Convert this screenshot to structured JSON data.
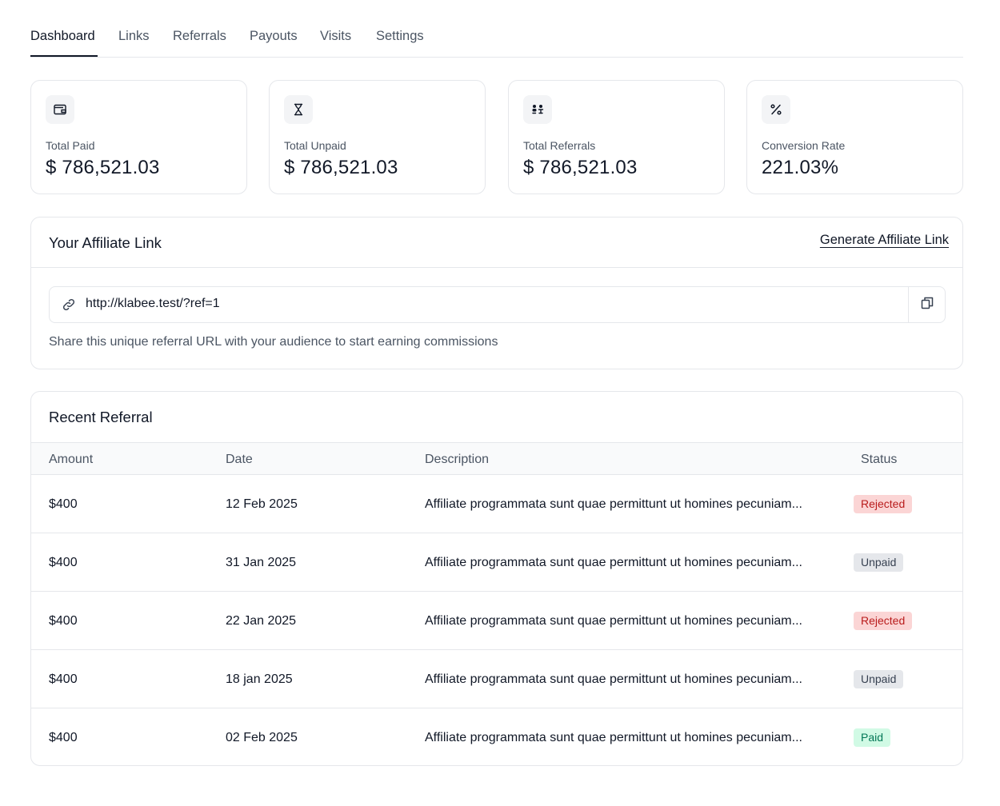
{
  "tabs": [
    {
      "label": "Dashboard",
      "active": true
    },
    {
      "label": "Links",
      "active": false
    },
    {
      "label": "Referrals",
      "active": false
    },
    {
      "label": "Payouts",
      "active": false
    },
    {
      "label": "Visits",
      "active": false
    },
    {
      "label": "Settings",
      "active": false
    }
  ],
  "stats": [
    {
      "icon": "wallet-icon",
      "label": "Total Paid",
      "value": "$ 786,521.03"
    },
    {
      "icon": "hourglass-icon",
      "label": "Total Unpaid",
      "value": "$ 786,521.03"
    },
    {
      "icon": "referrals-icon",
      "label": "Total Referrals",
      "value": "$ 786,521.03"
    },
    {
      "icon": "percent-icon",
      "label": "Conversion Rate",
      "value": "221.03%"
    }
  ],
  "affiliate": {
    "title": "Your Affiliate Link",
    "generate_label": "Generate Affiliate Link",
    "url": "http://klabee.test/?ref=1",
    "help": "Share this unique referral URL with your audience to start earning commissions"
  },
  "referrals": {
    "title": "Recent Referral",
    "columns": {
      "amount": "Amount",
      "date": "Date",
      "description": "Description",
      "status": "Status"
    },
    "rows": [
      {
        "amount": "$400",
        "date": "12 Feb 2025",
        "description": "Affiliate programmata sunt quae permittunt ut homines pecuniam...",
        "status": "Rejected",
        "status_type": "rejected"
      },
      {
        "amount": "$400",
        "date": "31 Jan 2025",
        "description": "Affiliate programmata sunt quae permittunt ut homines pecuniam...",
        "status": "Unpaid",
        "status_type": "unpaid"
      },
      {
        "amount": "$400",
        "date": "22 Jan 2025",
        "description": "Affiliate programmata sunt quae permittunt ut homines pecuniam...",
        "status": "Rejected",
        "status_type": "rejected"
      },
      {
        "amount": "$400",
        "date": "18 jan 2025",
        "description": "Affiliate programmata sunt quae permittunt ut homines pecuniam...",
        "status": "Unpaid",
        "status_type": "unpaid"
      },
      {
        "amount": "$400",
        "date": "02 Feb 2025",
        "description": "Affiliate programmata sunt quae permittunt ut homines pecuniam...",
        "status": "Paid",
        "status_type": "paid"
      }
    ]
  },
  "colors": {
    "text_primary": "#111827",
    "text_secondary": "#4b5563",
    "border": "#e5e7eb",
    "rejected_bg": "#fbd5d5",
    "unpaid_bg": "#e5e7eb",
    "paid_bg": "#d1fae5"
  }
}
